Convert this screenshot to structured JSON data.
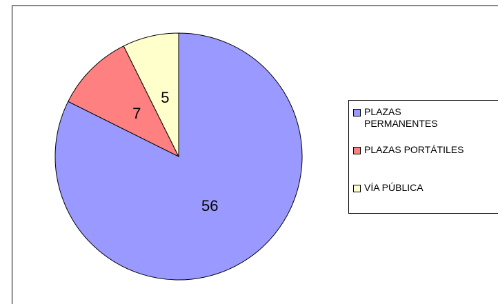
{
  "chart_data": {
    "type": "pie",
    "categories": [
      "PLAZAS PERMANENTES",
      "PLAZAS PORTÁTILES",
      "VÍA PÚBLICA"
    ],
    "values": [
      56,
      7,
      5
    ],
    "colors": [
      "#9999ff",
      "#ff8080",
      "#ffffcc"
    ],
    "legend": "right"
  }
}
